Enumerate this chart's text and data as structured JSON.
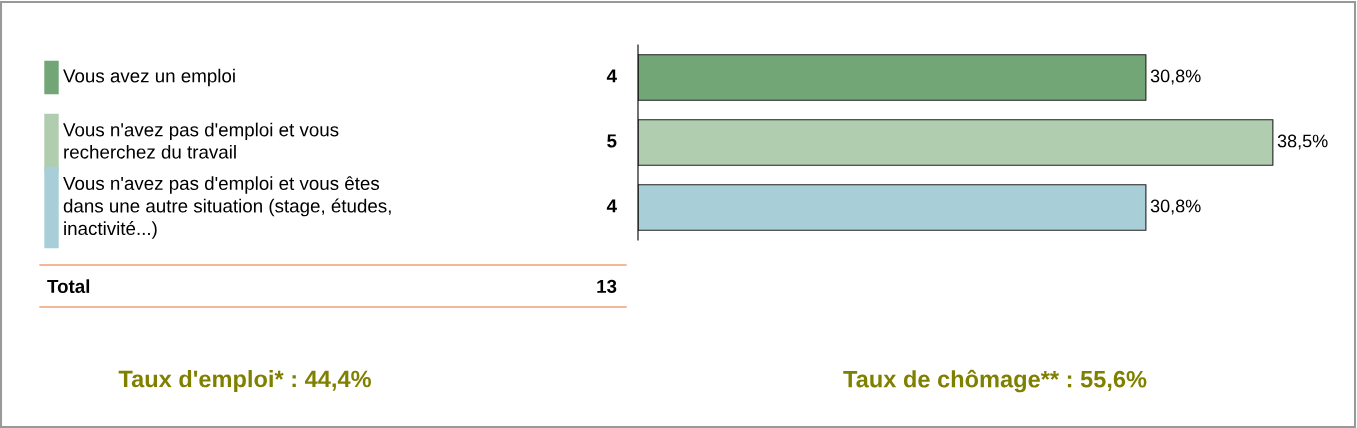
{
  "chart_data": {
    "type": "bar",
    "orientation": "horizontal",
    "categories": [
      "Vous avez un emploi",
      "Vous n'avez pas d'emploi et vous\nrecherchez du travail",
      "Vous n'avez pas d'emploi et vous êtes\ndans une autre situation (stage, études,\ninactivité...)"
    ],
    "values": [
      30.8,
      38.5,
      30.8
    ],
    "colors": [
      "#72a676",
      "#b1cdb0",
      "#a8cfd8"
    ],
    "value_labels": [
      "30,8%",
      "38,5%",
      "30,8%"
    ],
    "annotations": [
      "4",
      "5",
      "4",
      "Total",
      "13",
      "Taux d'emploi* : 44,4%",
      "Taux de chômage** : 55,6%"
    ]
  }
}
